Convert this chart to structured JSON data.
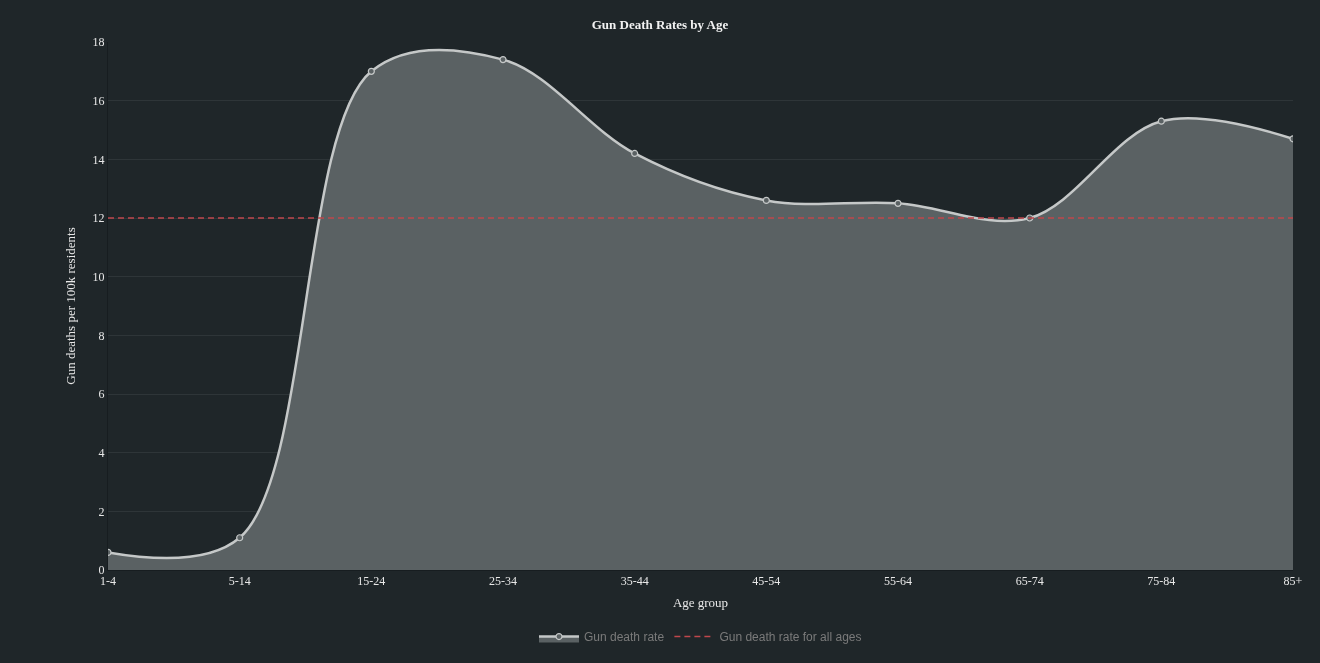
{
  "chart_data": {
    "type": "area",
    "title": "Gun Death Rates by Age",
    "xlabel": "Age group",
    "ylabel": "Gun deaths per 100k residents",
    "categories": [
      "1-4",
      "5-14",
      "15-24",
      "25-34",
      "35-44",
      "45-54",
      "55-64",
      "65-74",
      "75-84",
      "85+"
    ],
    "series": [
      {
        "name": "Gun death rate",
        "color": "#5a6163",
        "values": [
          0.6,
          1.1,
          17.0,
          17.4,
          14.2,
          12.6,
          12.5,
          12.0,
          15.3,
          14.7
        ]
      }
    ],
    "ylim": [
      0,
      18
    ],
    "yticks": [
      0,
      2,
      4,
      6,
      8,
      10,
      12,
      14,
      16,
      18
    ],
    "ref_lines": [
      {
        "axis": "y",
        "value": 12,
        "label": "Gun death rate for all ages",
        "color": "#c0474c",
        "line_style": "dashed"
      }
    ],
    "grid": "y",
    "legend": "bottom",
    "marker": "circle"
  }
}
